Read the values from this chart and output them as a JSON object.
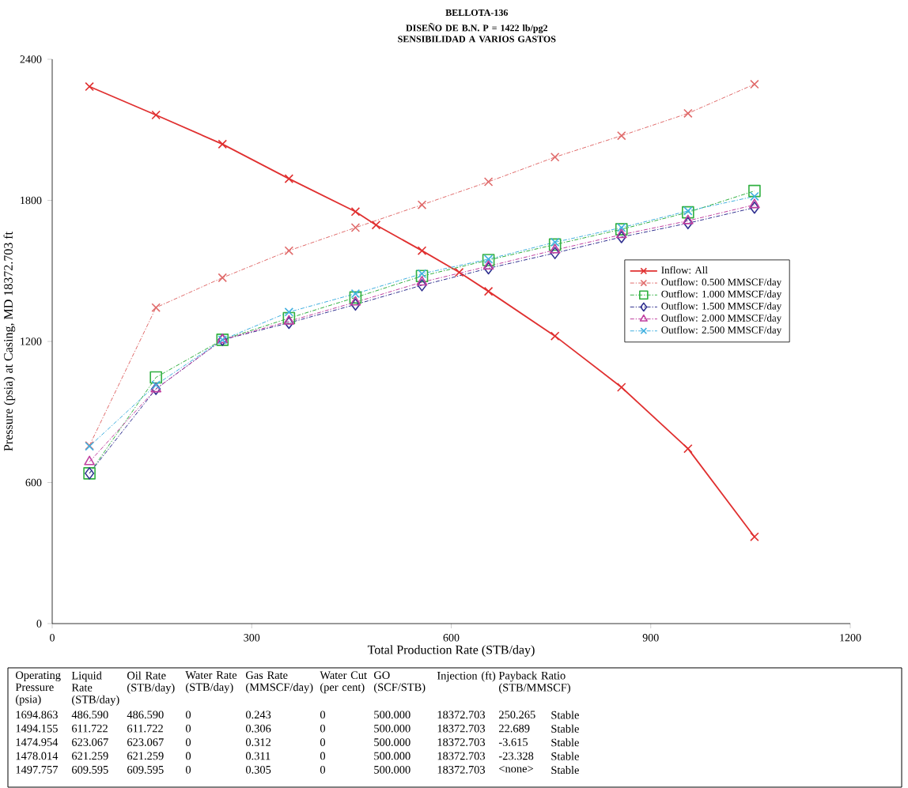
{
  "chart_data": {
    "type": "line",
    "title": "BELLOTA-136",
    "subtitle": "DISEÑO DE B.N. P = 1422 lb/pg2 SENSIBILIDAD A VARIOS GASTOS",
    "xlabel": "Total Production Rate (STB/day)",
    "ylabel": "Pressure (psia) at Casing, MD 18372.703 ft",
    "xlim": [
      0,
      1200
    ],
    "ylim": [
      0,
      2400
    ],
    "xticks": [
      0,
      300,
      600,
      900,
      1200
    ],
    "yticks": [
      0,
      600,
      1200,
      1800,
      2400
    ],
    "grid": false,
    "legend": "right",
    "x": [
      56,
      156,
      256,
      356,
      456,
      556,
      656,
      756,
      856,
      956,
      1056
    ],
    "series": [
      {
        "name": "Inflow: All",
        "color": "#e03030",
        "marker": "cross",
        "line_style": "solid",
        "x": [
          56,
          156,
          256,
          356,
          456,
          487,
          556,
          612,
          656,
          756,
          856,
          956,
          1056
        ],
        "values": [
          2284,
          2163,
          2039,
          1892,
          1752,
          1695,
          1586,
          1494,
          1413,
          1223,
          1005,
          744,
          369
        ]
      },
      {
        "name": "Outflow: 0.500 MMSCF/day",
        "color": "#e06a6a",
        "marker": "cross",
        "line_style": "dashed",
        "values": [
          757,
          1344,
          1471,
          1586,
          1684,
          1781,
          1879,
          1984,
          2075,
          2170,
          2294
        ]
      },
      {
        "name": "Outflow: 1.000 MMSCF/day",
        "color": "#30b040",
        "marker": "square",
        "line_style": "dashed",
        "values": [
          639,
          1047,
          1207,
          1299,
          1387,
          1478,
          1546,
          1612,
          1677,
          1749,
          1840
        ]
      },
      {
        "name": "Outflow: 1.500 MMSCF/day",
        "color": "#303090",
        "marker": "diamond",
        "line_style": "dashed",
        "values": [
          639,
          998,
          1207,
          1279,
          1357,
          1439,
          1511,
          1576,
          1644,
          1703,
          1769
        ]
      },
      {
        "name": "Outflow: 2.000 MMSCF/day",
        "color": "#c040a0",
        "marker": "triangle",
        "line_style": "dashed",
        "values": [
          688,
          998,
          1207,
          1286,
          1367,
          1452,
          1520,
          1589,
          1654,
          1713,
          1781
        ]
      },
      {
        "name": "Outflow: 2.500 MMSCF/day",
        "color": "#40b0e0",
        "marker": "cross",
        "line_style": "dashed",
        "values": [
          754,
          1015,
          1207,
          1325,
          1403,
          1488,
          1550,
          1622,
          1684,
          1755,
          1817
        ]
      }
    ],
    "annotations": [
      "Operating Pressure (psia)",
      "Liquid Rate (STB/day)",
      "Oil Rate (STB/day)",
      "Water Rate (STB/day)",
      "Gas Rate (MMSCF/day)",
      "Water Cut (per cent)",
      "GO (SCF/STB)",
      "Injection (ft)",
      "Payback Ratio (STB/MMSCF)",
      "1694.863",
      "486.590",
      "486.590",
      "0",
      "0.243",
      "0",
      "500.000",
      "18372.703",
      "250.265",
      "Stable",
      "1494.155",
      "611.722",
      "611.722",
      "0",
      "0.306",
      "0",
      "500.000",
      "18372.703",
      "22.689",
      "Stable",
      "1474.954",
      "623.067",
      "623.067",
      "0",
      "0.312",
      "0",
      "500.000",
      "18372.703",
      "-3.615",
      "Stable",
      "1478.014",
      "621.259",
      "621.259",
      "0",
      "0.311",
      "0",
      "500.000",
      "18372.703",
      "-23.328",
      "Stable",
      "1497.757",
      "609.595",
      "609.595",
      "0",
      "0.305",
      "0",
      "500.000",
      "18372.703",
      "<none>",
      "Stable"
    ]
  }
}
